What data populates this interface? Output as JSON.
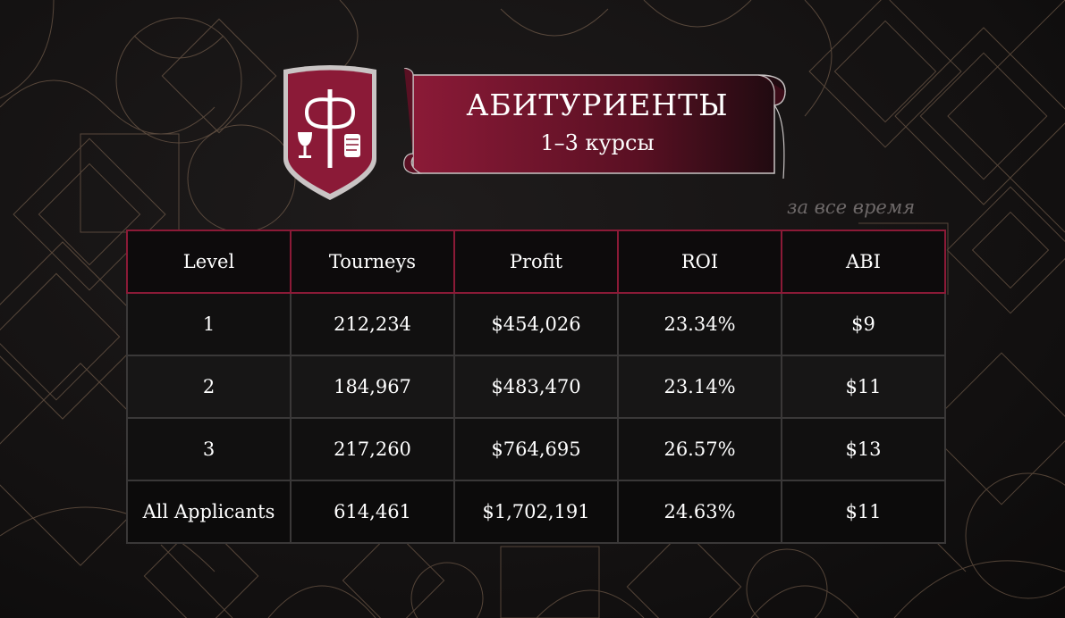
{
  "header": {
    "title": "АБИТУРИЕНТЫ",
    "subtitle": "1–3 курсы"
  },
  "period_note": "за все время",
  "colors": {
    "accent": "#8b1a37",
    "background": "#151313",
    "pattern_line": "#b08a6a"
  },
  "logo": {
    "icon": "university-shield-emblem-icon"
  },
  "table": {
    "headers": [
      "Level",
      "Tourneys",
      "Profit",
      "ROI",
      "ABI"
    ],
    "rows": [
      [
        "1",
        "212,234",
        "$454,026",
        "23.34%",
        "$9"
      ],
      [
        "2",
        "184,967",
        "$483,470",
        "23.14%",
        "$11"
      ],
      [
        "3",
        "217,260",
        "$764,695",
        "26.57%",
        "$13"
      ],
      [
        "All Applicants",
        "614,461",
        "$1,702,191",
        "24.63%",
        "$11"
      ]
    ]
  }
}
